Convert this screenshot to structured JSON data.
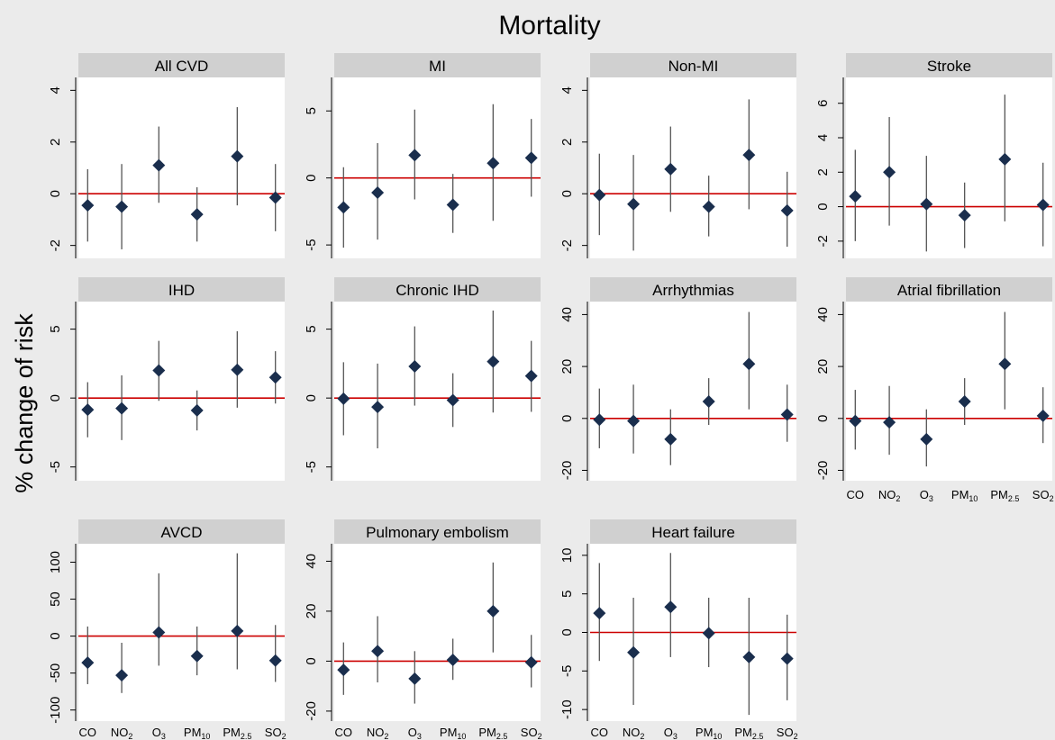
{
  "title": "Mortality",
  "ylabel": "% change of risk",
  "pollutants": [
    {
      "base": "CO",
      "sub": ""
    },
    {
      "base": "NO",
      "sub": "2"
    },
    {
      "base": "O",
      "sub": "3"
    },
    {
      "base": "PM",
      "sub": "10"
    },
    {
      "base": "PM",
      "sub": "2.5"
    },
    {
      "base": "SO",
      "sub": "2"
    }
  ],
  "colors": {
    "marker": "#1a2e4d",
    "ci": "#555555",
    "reference": "#cc0000",
    "header": "#d0d0d0",
    "panel": "#ffffff",
    "background": "#ebebeb"
  },
  "chart_data": [
    {
      "type": "scatter",
      "title": "All CVD",
      "ylim": [
        -2.5,
        4.5
      ],
      "ticks": [
        -2,
        0,
        2,
        4
      ],
      "points": [
        [
          -0.45,
          -1.85,
          0.95
        ],
        [
          -0.5,
          -2.15,
          1.15
        ],
        [
          1.1,
          -0.35,
          2.6
        ],
        [
          -0.8,
          -1.85,
          0.25
        ],
        [
          1.45,
          -0.45,
          3.35
        ],
        [
          -0.15,
          -1.45,
          1.15
        ]
      ]
    },
    {
      "type": "scatter",
      "title": "MI",
      "ylim": [
        -6,
        7.5
      ],
      "ticks": [
        -5,
        0,
        5
      ],
      "points": [
        [
          -2.2,
          -5.2,
          0.8
        ],
        [
          -1.1,
          -4.6,
          2.6
        ],
        [
          1.7,
          -1.6,
          5.1
        ],
        [
          -2.0,
          -4.1,
          0.3
        ],
        [
          1.1,
          -3.2,
          5.5
        ],
        [
          1.5,
          -1.4,
          4.4
        ]
      ]
    },
    {
      "type": "scatter",
      "title": "Non-MI",
      "ylim": [
        -2.5,
        4.5
      ],
      "ticks": [
        -2,
        0,
        2,
        4
      ],
      "points": [
        [
          -0.05,
          -1.6,
          1.55
        ],
        [
          -0.4,
          -2.2,
          1.5
        ],
        [
          0.95,
          -0.7,
          2.6
        ],
        [
          -0.5,
          -1.65,
          0.7
        ],
        [
          1.5,
          -0.6,
          3.65
        ],
        [
          -0.65,
          -2.05,
          0.85
        ]
      ]
    },
    {
      "type": "scatter",
      "title": "Stroke",
      "ylim": [
        -3,
        7.5
      ],
      "ticks": [
        -2,
        0,
        2,
        4,
        6
      ],
      "points": [
        [
          0.6,
          -2.0,
          3.3
        ],
        [
          2.0,
          -1.1,
          5.2
        ],
        [
          0.15,
          -2.6,
          2.95
        ],
        [
          -0.5,
          -2.4,
          1.4
        ],
        [
          2.75,
          -0.85,
          6.5
        ],
        [
          0.1,
          -2.3,
          2.55
        ]
      ]
    },
    {
      "type": "scatter",
      "title": "IHD",
      "ylim": [
        -6,
        7
      ],
      "ticks": [
        -5,
        0,
        5
      ],
      "points": [
        [
          -0.85,
          -2.85,
          1.15
        ],
        [
          -0.75,
          -3.05,
          1.65
        ],
        [
          2.0,
          -0.2,
          4.15
        ],
        [
          -0.9,
          -2.35,
          0.55
        ],
        [
          2.05,
          -0.7,
          4.85
        ],
        [
          1.5,
          -0.4,
          3.4
        ]
      ]
    },
    {
      "type": "scatter",
      "title": "Chronic IHD",
      "ylim": [
        -6,
        7
      ],
      "ticks": [
        -5,
        0,
        5
      ],
      "points": [
        [
          -0.05,
          -2.7,
          2.6
        ],
        [
          -0.65,
          -3.65,
          2.5
        ],
        [
          2.3,
          -0.55,
          5.2
        ],
        [
          -0.15,
          -2.1,
          1.8
        ],
        [
          2.65,
          -1.05,
          6.35
        ],
        [
          1.6,
          -1.0,
          4.15
        ]
      ]
    },
    {
      "type": "scatter",
      "title": "Arrhythmias",
      "ylim": [
        -24,
        45
      ],
      "ticks": [
        -20,
        0,
        20,
        40
      ],
      "points": [
        [
          -0.5,
          -11.5,
          11.5
        ],
        [
          -1.0,
          -13.5,
          13.0
        ],
        [
          -8.0,
          -18.0,
          3.5
        ],
        [
          6.5,
          -2.5,
          15.5
        ],
        [
          21.0,
          3.5,
          41.0
        ],
        [
          1.5,
          -9.0,
          13.0
        ]
      ]
    },
    {
      "type": "scatter",
      "title": "Atrial fibrillation",
      "ylim": [
        -24,
        45
      ],
      "ticks": [
        -20,
        0,
        20,
        40
      ],
      "points": [
        [
          -1.0,
          -12.0,
          11.0
        ],
        [
          -1.5,
          -14.0,
          12.5
        ],
        [
          -8.0,
          -18.5,
          3.5
        ],
        [
          6.5,
          -2.5,
          15.5
        ],
        [
          21.0,
          3.5,
          41.0
        ],
        [
          1.0,
          -9.5,
          12.0
        ]
      ]
    },
    {
      "type": "scatter",
      "title": "AVCD",
      "ylim": [
        -115,
        125
      ],
      "ticks": [
        -100,
        -50,
        0,
        50,
        100
      ],
      "points": [
        [
          -36,
          -65,
          13
        ],
        [
          -53,
          -77,
          -9
        ],
        [
          5,
          -40,
          85
        ],
        [
          -27,
          -53,
          13
        ],
        [
          7,
          -45,
          112
        ],
        [
          -33,
          -62,
          15
        ]
      ]
    },
    {
      "type": "scatter",
      "title": "Pulmonary embolism",
      "ylim": [
        -24,
        47
      ],
      "ticks": [
        -20,
        0,
        20,
        40
      ],
      "points": [
        [
          -3.5,
          -13.5,
          7.5
        ],
        [
          4.0,
          -8.5,
          18.0
        ],
        [
          -7.0,
          -17.0,
          4.0
        ],
        [
          0.5,
          -7.5,
          9.0
        ],
        [
          20.0,
          3.5,
          39.5
        ],
        [
          -0.5,
          -10.5,
          10.5
        ]
      ]
    },
    {
      "type": "scatter",
      "title": "Heart failure",
      "ylim": [
        -11.5,
        11.5
      ],
      "ticks": [
        -10,
        -5,
        0,
        5,
        10
      ],
      "points": [
        [
          2.5,
          -3.7,
          9.0
        ],
        [
          -2.6,
          -9.4,
          4.5
        ],
        [
          3.3,
          -3.2,
          10.3
        ],
        [
          -0.1,
          -4.5,
          4.5
        ],
        [
          -3.2,
          -10.7,
          4.5
        ],
        [
          -3.4,
          -8.8,
          2.3
        ]
      ]
    }
  ]
}
